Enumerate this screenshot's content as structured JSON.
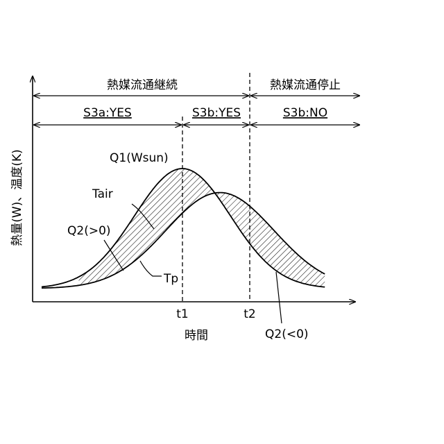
{
  "chart_data": {
    "type": "line",
    "xlabel": "時間",
    "ylabel": "熱量(W)、温度(K)",
    "x_ticks": [
      "t1",
      "t2"
    ],
    "phases_top": [
      {
        "label": "熱媒流通継続"
      },
      {
        "label": "熱媒流通停止"
      }
    ],
    "phases_sub": [
      {
        "label": "S3a:YES"
      },
      {
        "label": "S3b:YES"
      },
      {
        "label": "S3b:NO"
      }
    ],
    "curve_labels": {
      "q1": "Q1(Wsun)",
      "tair": "Tair",
      "q2_pos": "Q2(>0)",
      "tp": "Tp",
      "q2_neg": "Q2(<0)"
    },
    "series": [
      {
        "name": "Q1(Wsun)",
        "peak_time": 1.0,
        "peak_value": 1.0
      },
      {
        "name": "Tp",
        "peak_time": 1.25,
        "peak_value": 0.82
      }
    ]
  }
}
